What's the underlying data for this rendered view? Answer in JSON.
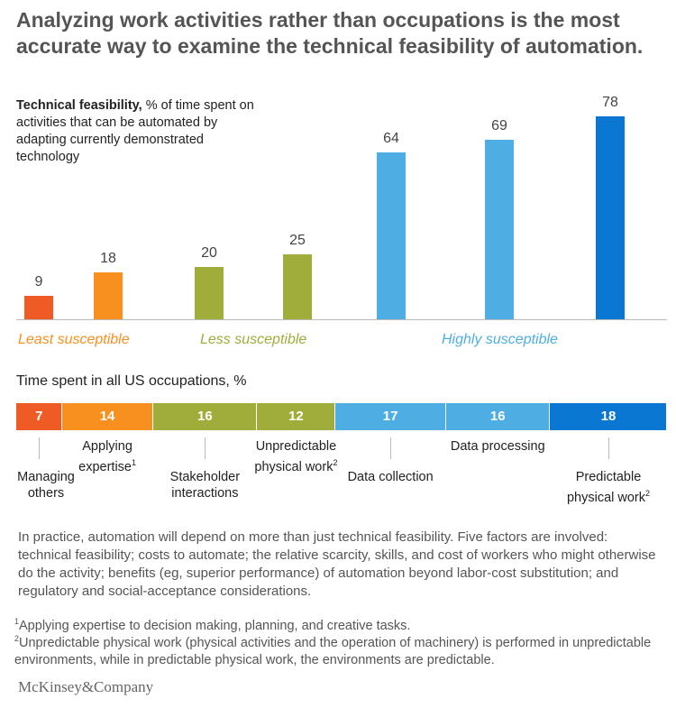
{
  "title": "Analyzing work activities rather than occupations is the most accurate way to examine the technical feasibility of automation.",
  "chart_data": [
    {
      "type": "bar",
      "title": "Technical feasibility,",
      "subtitle": "% of time spent on activities that can be automated by adapting currently demonstrated technology",
      "values": [
        9,
        18,
        20,
        25,
        64,
        69,
        78
      ],
      "colors": [
        "#ef5b25",
        "#f7901e",
        "#a0ad3a",
        "#a0ad3a",
        "#4eaee4",
        "#4eaee4",
        "#0a78d2"
      ],
      "groups": [
        {
          "label": "Least susceptible",
          "color": "#f7901e"
        },
        {
          "label": "Less susceptible",
          "color": "#a0ad3a"
        },
        {
          "label": "Highly susceptible",
          "color": "#4eaee4"
        }
      ]
    },
    {
      "type": "stacked_bar",
      "title": "Time spent in all US occupations, %",
      "categories": [
        {
          "label": "Managing others"
        },
        {
          "label": "Applying expertise",
          "note": "1"
        },
        {
          "label": "Stakeholder interactions"
        },
        {
          "label": "Unpredictable physical work",
          "note": "2"
        },
        {
          "label": "Data collection"
        },
        {
          "label": "Data processing"
        },
        {
          "label": "Predictable physical work",
          "note": "2"
        }
      ],
      "values": [
        7,
        14,
        16,
        12,
        17,
        16,
        18
      ],
      "colors": [
        "#ef5b25",
        "#f7901e",
        "#a0ad3a",
        "#a0ad3a",
        "#4eaee4",
        "#4eaee4",
        "#0a78d2"
      ]
    }
  ],
  "notes": "In practice, automation will depend on more than just technical feasibility. Five factors are involved: technical feasibility; costs to automate; the relative scarcity, skills, and cost of workers who might otherwise do the activity; benefits (eg, superior performance) of automation beyond labor-cost substitution; and regulatory and social-acceptance considerations.",
  "footnotes": [
    {
      "mark": "1",
      "text": "Applying expertise to decision making, planning, and creative tasks."
    },
    {
      "mark": "2",
      "text": "Unpredictable physical work (physical activities and the operation of machinery) is performed in unpredictable environments, while in predictable physical work, the environments are predictable."
    }
  ],
  "source": "McKinsey&Company"
}
